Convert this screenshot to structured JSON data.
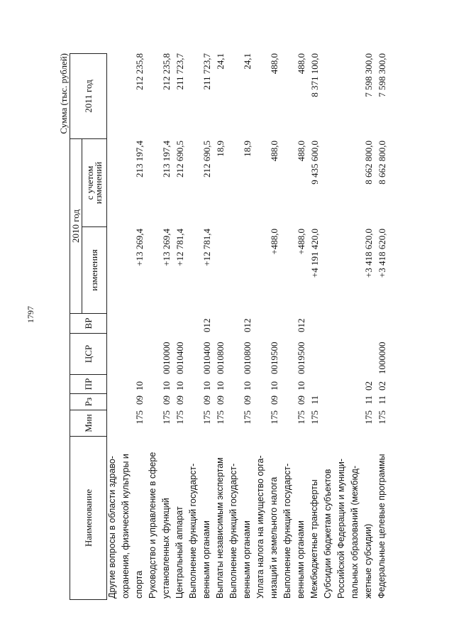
{
  "page_number": "1797",
  "units": "Сумма (тыс. рублей)",
  "header": {
    "name": "Наименование",
    "min": "Мин",
    "rz": "Рз",
    "pr": "ПР",
    "csr": "ЦСР",
    "vr": "ВР",
    "year2010": "2010 год",
    "changes": "изменения",
    "with_changes": "с учетом изменений",
    "year2011": "2011 год"
  },
  "rows": [
    {
      "name": [
        "Другие вопросы в области здраво-",
        "охранения, физической культуры и",
        "спорта"
      ],
      "min": "175",
      "rz": "09",
      "pr": "10",
      "csr": "",
      "vr": "",
      "changes": "+13 269,4",
      "with_changes": "213 197,4",
      "y2011": "212 235,8"
    },
    {
      "name": [
        "Руководство и управление в сфере",
        "установленных функций"
      ],
      "min": "175",
      "rz": "09",
      "pr": "10",
      "csr": "0010000",
      "vr": "",
      "changes": "+13 269,4",
      "with_changes": "213 197,4",
      "y2011": "212 235,8"
    },
    {
      "name": [
        "Центральный аппарат"
      ],
      "min": "175",
      "rz": "09",
      "pr": "10",
      "csr": "0010400",
      "vr": "",
      "changes": "+12 781,4",
      "with_changes": "212 690,5",
      "y2011": "211 723,7"
    },
    {
      "name": [
        "Выполнение функций государст-",
        "венными органами"
      ],
      "min": "175",
      "rz": "09",
      "pr": "10",
      "csr": "0010400",
      "vr": "012",
      "changes": "+12 781,4",
      "with_changes": "212 690,5",
      "y2011": "211 723,7"
    },
    {
      "name": [
        "Выплаты независимым экспертам"
      ],
      "min": "175",
      "rz": "09",
      "pr": "10",
      "csr": "0010800",
      "vr": "",
      "changes": "",
      "with_changes": "18,9",
      "y2011": "24,1"
    },
    {
      "name": [
        "Выполнение функций государст-",
        "венными органами"
      ],
      "min": "175",
      "rz": "09",
      "pr": "10",
      "csr": "0010800",
      "vr": "012",
      "changes": "",
      "with_changes": "18,9",
      "y2011": "24,1"
    },
    {
      "name": [
        "Уплата налога на имущество орга-",
        "низаций и земельного налога"
      ],
      "min": "175",
      "rz": "09",
      "pr": "10",
      "csr": "0019500",
      "vr": "",
      "changes": "+488,0",
      "with_changes": "488,0",
      "y2011": "488,0"
    },
    {
      "name": [
        "Выполнение функций государст-",
        "венными органами"
      ],
      "min": "175",
      "rz": "09",
      "pr": "10",
      "csr": "0019500",
      "vr": "012",
      "changes": "+488,0",
      "with_changes": "488,0",
      "y2011": "488,0"
    },
    {
      "name": [
        "Межбюджетные трансферты"
      ],
      "min": "175",
      "rz": "11",
      "pr": "",
      "csr": "",
      "vr": "",
      "changes": "+4 191 420,0",
      "with_changes": "9 435 600,0",
      "y2011": "8 371 100,0"
    },
    {
      "name": [
        "Субсидии бюджетам субъектов",
        "Российской Федерации и муници-",
        "пальных образований (межбюд-",
        "жетные субсидии)"
      ],
      "min": "175",
      "rz": "11",
      "pr": "02",
      "csr": "",
      "vr": "",
      "changes": "+3 418 620,0",
      "with_changes": "8 662 800,0",
      "y2011": "7 598 300,0"
    },
    {
      "name": [
        "Федеральные целевые программы"
      ],
      "min": "175",
      "rz": "11",
      "pr": "02",
      "csr": "1000000",
      "vr": "",
      "changes": "+3 418 620,0",
      "with_changes": "8 662 800,0",
      "y2011": "7 598 300,0"
    }
  ]
}
